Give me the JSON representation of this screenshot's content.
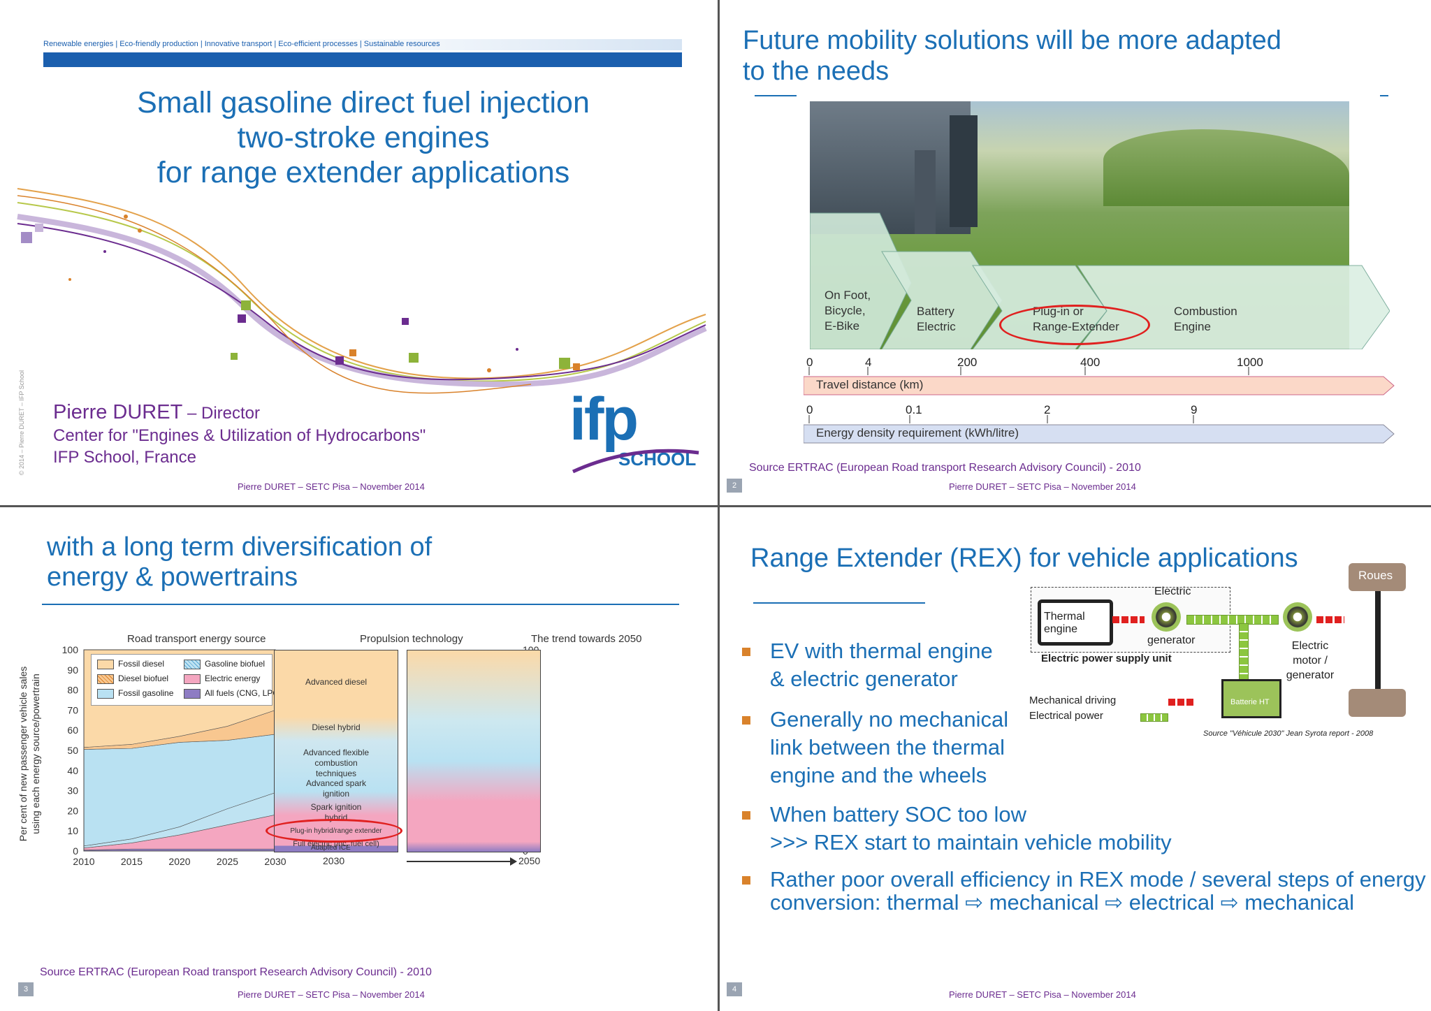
{
  "slide1": {
    "topbar": "Renewable energies | Eco-friendly production | Innovative transport | Eco-efficient processes | Sustainable resources",
    "title_lines": [
      "Small gasoline direct fuel injection",
      "two-stroke engines",
      "for range extender applications"
    ],
    "author_name": "Pierre DURET",
    "author_role": " – Director",
    "affiliation1": "Center for \"Engines & Utilization of Hydrocarbons\"",
    "affiliation2": "IFP School, France",
    "copyright": "© 2014 – Pierre DURET – IFP School",
    "logo_top": "ifp",
    "logo_bottom": "SCHOOL",
    "footer": "Pierre DURET – SETC Pisa – November 2014"
  },
  "slide2": {
    "title_lines": [
      "Future mobility solutions will be more adapted",
      "to the needs"
    ],
    "chevrons": [
      {
        "lines": [
          "On Foot,",
          "Bicycle,",
          "E-Bike"
        ]
      },
      {
        "lines": [
          "Battery",
          "Electric"
        ]
      },
      {
        "lines": [
          "Plug-in or",
          "Range-Extender"
        ]
      },
      {
        "lines": [
          "Combustion",
          "Engine"
        ]
      }
    ],
    "travel_ticks": [
      "0",
      "4",
      "200",
      "400",
      "1000"
    ],
    "travel_label": "Travel distance (km)",
    "energy_ticks": [
      "0",
      "0.1",
      "2",
      "9"
    ],
    "energy_label": "Energy density requirement (kWh/litre)",
    "source": "Source ERTRAC (European Road transport Research Advisory Council) - 2010",
    "page": "2",
    "footer": "Pierre DURET – SETC Pisa – November 2014"
  },
  "slide3": {
    "title_lines": [
      "with a long term diversification of",
      "energy & powertrains"
    ],
    "panel_titles": [
      "Road transport energy source",
      "Propulsion technology",
      "The trend towards 2050"
    ],
    "y_axis_label_lines": [
      "Per cent of new passenger vehicle sales",
      "using each energy source/powertrain"
    ],
    "legend": [
      "Fossil diesel",
      "Gasoline biofuel",
      "Diesel biofuel",
      "Electric energy",
      "Fossil gasoline",
      "All fuels (CNG, LPG)"
    ],
    "propulsion_labels": [
      "Advanced diesel",
      "Diesel hybrid",
      "Advanced flexible combustion techniques",
      "Advanced spark ignition",
      "Spark ignition hybrid",
      "Plug-in hybrid/range extender",
      "Full electric (inc. fuel cell)",
      "Adapted ICE"
    ],
    "x_ticks": [
      "2010",
      "2015",
      "2020",
      "2025",
      "2030"
    ],
    "mid_x_tick": "2030",
    "right_x_tick": "2050",
    "source": "Source ERTRAC (European Road transport Research Advisory Council) - 2010",
    "page": "3",
    "footer": "Pierre DURET – SETC Pisa – November 2014"
  },
  "slide4": {
    "title": "Range Extender (REX) for vehicle applications",
    "bullets": [
      {
        "lines": [
          "EV with thermal engine",
          "& electric generator"
        ]
      },
      {
        "lines": [
          "Generally no mechanical",
          "link between the thermal",
          "engine and the wheels"
        ]
      },
      {
        "lines": [
          "When battery SOC too low",
          ">>> REX start to maintain  vehicle mobility"
        ]
      },
      {
        "lines": [
          "Rather poor overall efficiency in REX mode / several steps of energy",
          "conversion: thermal ⇨ mechanical ⇨ electrical ⇨ mechanical"
        ]
      }
    ],
    "diagram": {
      "thermal": "Thermal engine",
      "electric_top": "Electric",
      "generator": "generator",
      "supply_unit": "Electric power supply unit",
      "motor": "Electric motor / generator",
      "wheels": "Roues",
      "battery": "Batterie HT",
      "legend_mech": "Mechanical driving",
      "legend_elec": "Electrical power",
      "source": "Source \"Véhicule 2030\" Jean Syrota report - 2008"
    },
    "page": "4",
    "footer": "Pierre DURET – SETC Pisa – November 2014"
  },
  "chart_data": {
    "type": "area",
    "title": "Road transport energy source",
    "x": [
      2010,
      2015,
      2020,
      2025,
      2030
    ],
    "ylim": [
      0,
      100
    ],
    "ylabel": "Per cent of new passenger vehicle sales using each energy source/powertrain",
    "series": [
      {
        "name": "All fuels (CNG, LPG)",
        "values": [
          0.5,
          1,
          1,
          1,
          1
        ]
      },
      {
        "name": "Electric energy",
        "values": [
          1,
          3,
          7,
          12,
          17
        ]
      },
      {
        "name": "Gasoline biofuel",
        "values": [
          1,
          2,
          4,
          8,
          11
        ]
      },
      {
        "name": "Fossil gasoline",
        "values": [
          48,
          45,
          42,
          34,
          29
        ]
      },
      {
        "name": "Diesel biofuel",
        "values": [
          1,
          2,
          3,
          7,
          12
        ]
      },
      {
        "name": "Fossil diesel",
        "values": [
          48.5,
          47,
          43,
          38,
          30
        ]
      }
    ],
    "colors": [
      "#8e7cc3",
      "#f4a6c0",
      "#bfe3f2",
      "#b9e1f2",
      "#f8c790",
      "#fbd9a8"
    ]
  }
}
